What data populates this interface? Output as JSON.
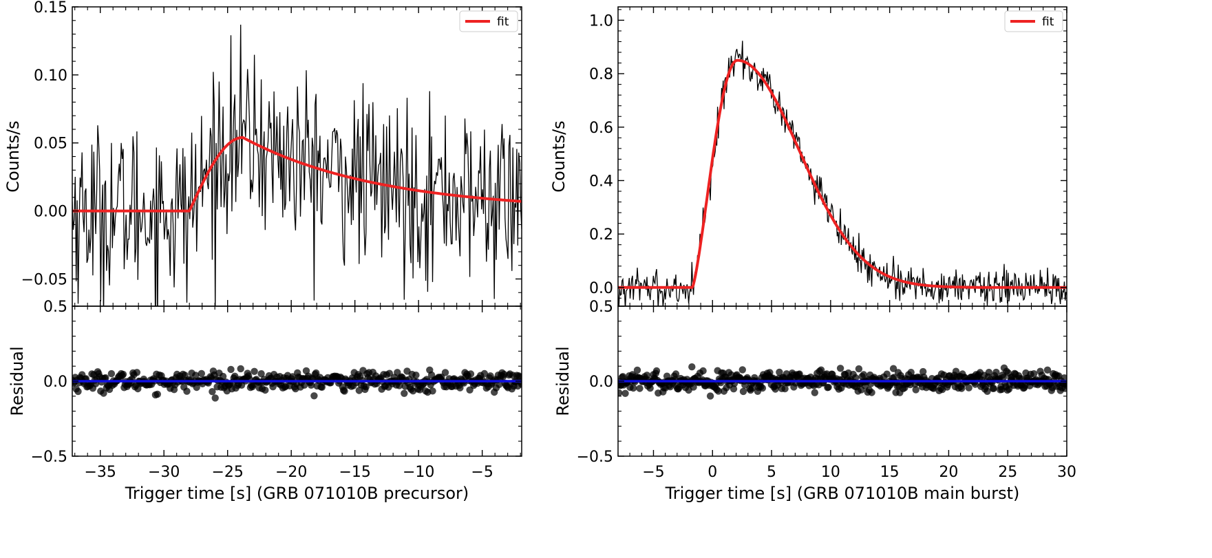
{
  "chart_data": [
    {
      "panel": "precursor",
      "type": "line",
      "title": "",
      "main": {
        "ylabel": "Counts/s",
        "xlim": [
          -37.2,
          -1.9
        ],
        "ylim": [
          -0.07,
          0.15
        ],
        "yticks": [
          -0.05,
          0.0,
          0.05,
          0.1,
          0.15
        ],
        "ytick_labels": [
          "−0.05",
          "0.00",
          "0.05",
          "0.10",
          "0.15"
        ],
        "series": [
          {
            "name": "",
            "kind": "data",
            "color": "#000000",
            "x_start": -37.2,
            "x_end": -1.9,
            "n_points": 460,
            "noise_sigma": 0.032,
            "note_model": "light curve fluctuates around the fit curve"
          },
          {
            "name": "fit",
            "kind": "fit",
            "color": "#ee2222",
            "model": {
              "t0": -28.0,
              "peak_time": -23.8,
              "peak": 0.054,
              "end_time": -1.9,
              "end_value": 0.007
            }
          }
        ],
        "legend": {
          "entries": [
            "fit"
          ],
          "placement": "upper right"
        }
      },
      "residual": {
        "ylabel": "Residual",
        "ylim": [
          -0.5,
          0.5
        ],
        "yticks": [
          -0.5,
          0.0,
          0.5
        ],
        "ytick_labels": [
          "−0.5",
          "0.0",
          "0.5"
        ],
        "zero_line_color": "#1010e0",
        "point_color": "#000000",
        "n_points": 460,
        "sigma": 0.032
      },
      "xlabel": "Trigger time [s] (GRB 071010B precursor)",
      "xticks": [
        -35,
        -30,
        -25,
        -20,
        -15,
        -10,
        -5
      ],
      "xtick_labels": [
        "−35",
        "−30",
        "−25",
        "−20",
        "−15",
        "−10",
        "−5"
      ]
    },
    {
      "panel": "main burst",
      "type": "line",
      "title": "",
      "main": {
        "ylabel": "Counts/s",
        "xlim": [
          -8,
          30
        ],
        "ylim": [
          -0.07,
          1.05
        ],
        "yticks": [
          0.0,
          0.2,
          0.4,
          0.6,
          0.8,
          1.0
        ],
        "ytick_labels": [
          "0.0",
          "0.2",
          "0.4",
          "0.6",
          "0.8",
          "1.0"
        ],
        "series": [
          {
            "name": "",
            "kind": "data",
            "color": "#000000",
            "x_start": -8,
            "x_end": 30,
            "n_points": 560,
            "noise_sigma": 0.035,
            "note_model": "light curve fluctuates around the fit curve"
          },
          {
            "name": "fit",
            "kind": "fit",
            "color": "#ee2222",
            "model": {
              "t0": -1.7,
              "peak_time": 2.1,
              "peak": 0.85,
              "decay_width": 7.0,
              "end_value": 0.0
            }
          }
        ],
        "legend": {
          "entries": [
            "fit"
          ],
          "placement": "upper right"
        }
      },
      "residual": {
        "ylabel": "Residual",
        "ylim": [
          -0.5,
          0.5
        ],
        "yticks": [
          -0.5,
          0.0,
          0.5
        ],
        "ytick_labels": [
          "−0.5",
          "0.0",
          "0.5"
        ],
        "zero_line_color": "#1010e0",
        "point_color": "#000000",
        "n_points": 560,
        "sigma": 0.035
      },
      "xlabel": "Trigger time [s] (GRB 071010B main burst)",
      "xticks": [
        -5,
        0,
        5,
        10,
        15,
        20,
        25,
        30
      ],
      "xtick_labels": [
        "−5",
        "0",
        "5",
        "10",
        "15",
        "20",
        "25",
        "30"
      ]
    }
  ]
}
